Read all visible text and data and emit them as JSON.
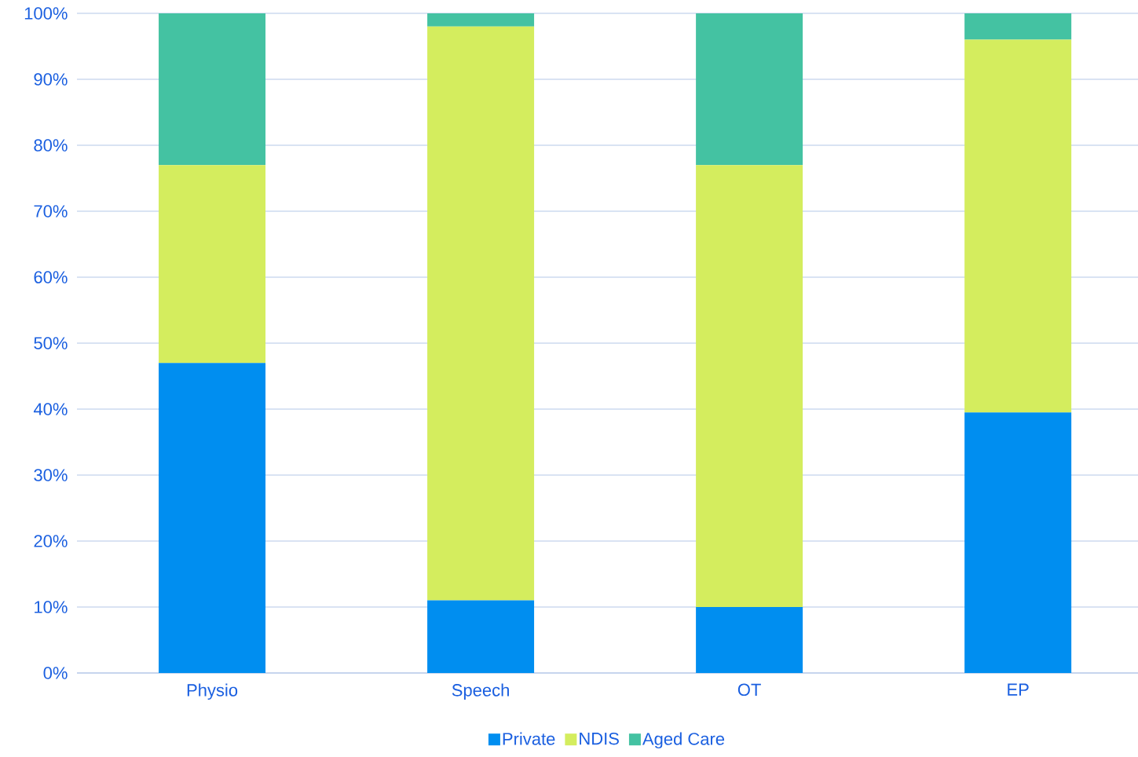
{
  "chart_data": {
    "type": "bar",
    "stacked": true,
    "categories": [
      "Physio",
      "Speech",
      "OT",
      "EP"
    ],
    "series": [
      {
        "name": "Private",
        "color": "#008ef0",
        "values": [
          47,
          11,
          10,
          39.5
        ]
      },
      {
        "name": "NDIS",
        "color": "#d4ed5e",
        "values": [
          30,
          87,
          67,
          56.5
        ]
      },
      {
        "name": "Aged Care",
        "color": "#44c2a2",
        "values": [
          23,
          2,
          23,
          4
        ]
      }
    ],
    "ylim": [
      0,
      100
    ],
    "yticks": [
      {
        "value": 0,
        "label": "0%"
      },
      {
        "value": 10,
        "label": "10%"
      },
      {
        "value": 20,
        "label": "20%"
      },
      {
        "value": 30,
        "label": "30%"
      },
      {
        "value": 40,
        "label": "40%"
      },
      {
        "value": 50,
        "label": "50%"
      },
      {
        "value": 60,
        "label": "60%"
      },
      {
        "value": 70,
        "label": "70%"
      },
      {
        "value": 80,
        "label": "80%"
      },
      {
        "value": 90,
        "label": "90%"
      },
      {
        "value": 100,
        "label": "100%"
      }
    ],
    "grid": "y",
    "legend": "bottom"
  }
}
